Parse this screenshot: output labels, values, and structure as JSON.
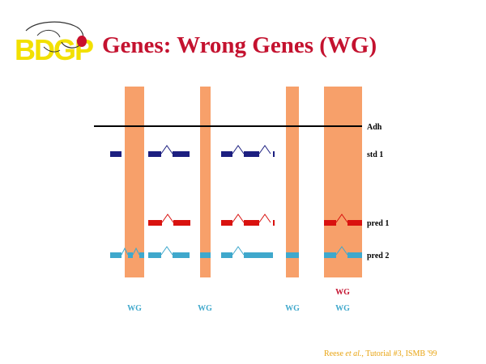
{
  "title": "Genes: Wrong Genes (WG)",
  "logo_text": "BDGP",
  "tracks": {
    "adh": "Adh",
    "std1": "std 1",
    "pred1": "pred 1",
    "pred2": "pred 2"
  },
  "wg_label": "WG",
  "footer": {
    "author": "Reese",
    "etal": "et al.",
    "rest": ", Tutorial #3, ISMB '99"
  },
  "colors": {
    "title": "#c4122f",
    "highlight": "#f7a06a",
    "std": "#1c1f80",
    "pred1": "#d9120f",
    "pred2": "#3fa8cc",
    "wg_red": "#c4122f",
    "wg_cyan": "#3fa8cc",
    "footer": "#e8a310",
    "logo_yellow": "#f2e000",
    "logo_red": "#c8102e"
  }
}
